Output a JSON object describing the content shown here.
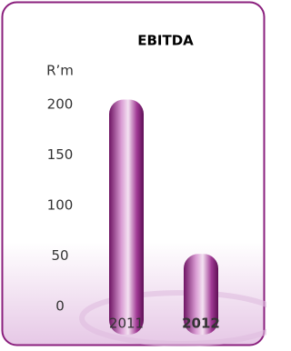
{
  "chart_data": {
    "type": "bar",
    "title": "EBITDA",
    "y_label": "R’m",
    "categories": [
      "2011",
      "2012"
    ],
    "values": [
      205,
      52
    ],
    "color": "#9b2a8a",
    "ylim": [
      0,
      200
    ],
    "yticks": [
      0,
      50,
      100,
      150,
      200
    ],
    "grid": false
  }
}
